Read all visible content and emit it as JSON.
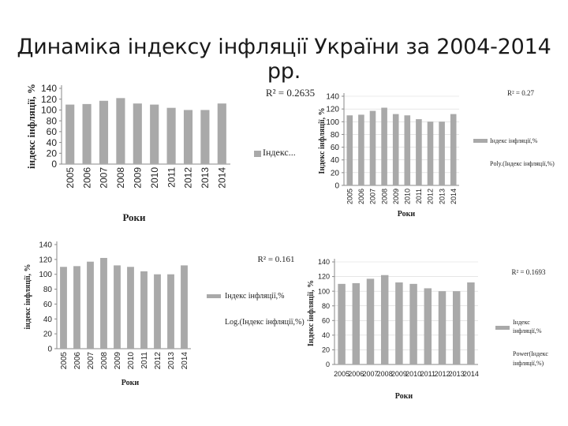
{
  "title": "Динаміка індексу інфляції України за 2004-2014 рр.",
  "colors": {
    "bar": "#a9a9a9",
    "axis": "#8a8a8a",
    "grid": "#d8d8d8",
    "text": "#222222"
  },
  "chart_data": [
    {
      "type": "bar",
      "categories": [
        "2005",
        "2006",
        "2007",
        "2008",
        "2009",
        "2010",
        "2011",
        "2012",
        "2013",
        "2014"
      ],
      "values": [
        110,
        111,
        117,
        122,
        112,
        110,
        104,
        100,
        100,
        112
      ],
      "ylim": [
        0,
        140
      ],
      "ytick_step": 20,
      "ylabel": "індекс інфляції, %",
      "xlabel": "Роки",
      "r2": "R² = 0.2635",
      "legend": [
        "Індекс..."
      ]
    },
    {
      "type": "bar",
      "categories": [
        "2005",
        "2006",
        "2007",
        "2008",
        "2009",
        "2010",
        "2011",
        "2012",
        "2013",
        "2014"
      ],
      "values": [
        110,
        111,
        117,
        122,
        112,
        110,
        104,
        100,
        100,
        112
      ],
      "ylim": [
        0,
        140
      ],
      "ytick_step": 20,
      "ylabel": "Індекс інфляції, %",
      "xlabel": "Роки",
      "r2": "R² = 0.27",
      "legend": [
        "Індекс інфляції,%",
        "Poly.(Індекс інфляції,%)"
      ]
    },
    {
      "type": "bar",
      "categories": [
        "2005",
        "2006",
        "2007",
        "2008",
        "2009",
        "2010",
        "2011",
        "2012",
        "2013",
        "2014"
      ],
      "values": [
        110,
        111,
        117,
        122,
        112,
        110,
        104,
        100,
        100,
        112
      ],
      "ylim": [
        0,
        140
      ],
      "ytick_step": 20,
      "ylabel": "індекс інфляції, %",
      "xlabel": "Роки",
      "r2": "R² = 0.161",
      "legend": [
        "Індекс інфляції,%",
        "Log.(Індекс інфляції,%)"
      ]
    },
    {
      "type": "bar",
      "categories": [
        "2005",
        "2006",
        "2007",
        "2008",
        "2009",
        "2010",
        "2011",
        "2012",
        "2013",
        "2014"
      ],
      "values": [
        110,
        111,
        117,
        122,
        112,
        110,
        104,
        100,
        100,
        112
      ],
      "ylim": [
        0,
        140
      ],
      "ytick_step": 20,
      "ylabel": "Індекс інфляції, %",
      "xlabel": "Роки",
      "r2": "R² = 0.1693",
      "legend": [
        "Індекс інфляції,%",
        "Power(Індекс інфляції,%)"
      ]
    }
  ]
}
